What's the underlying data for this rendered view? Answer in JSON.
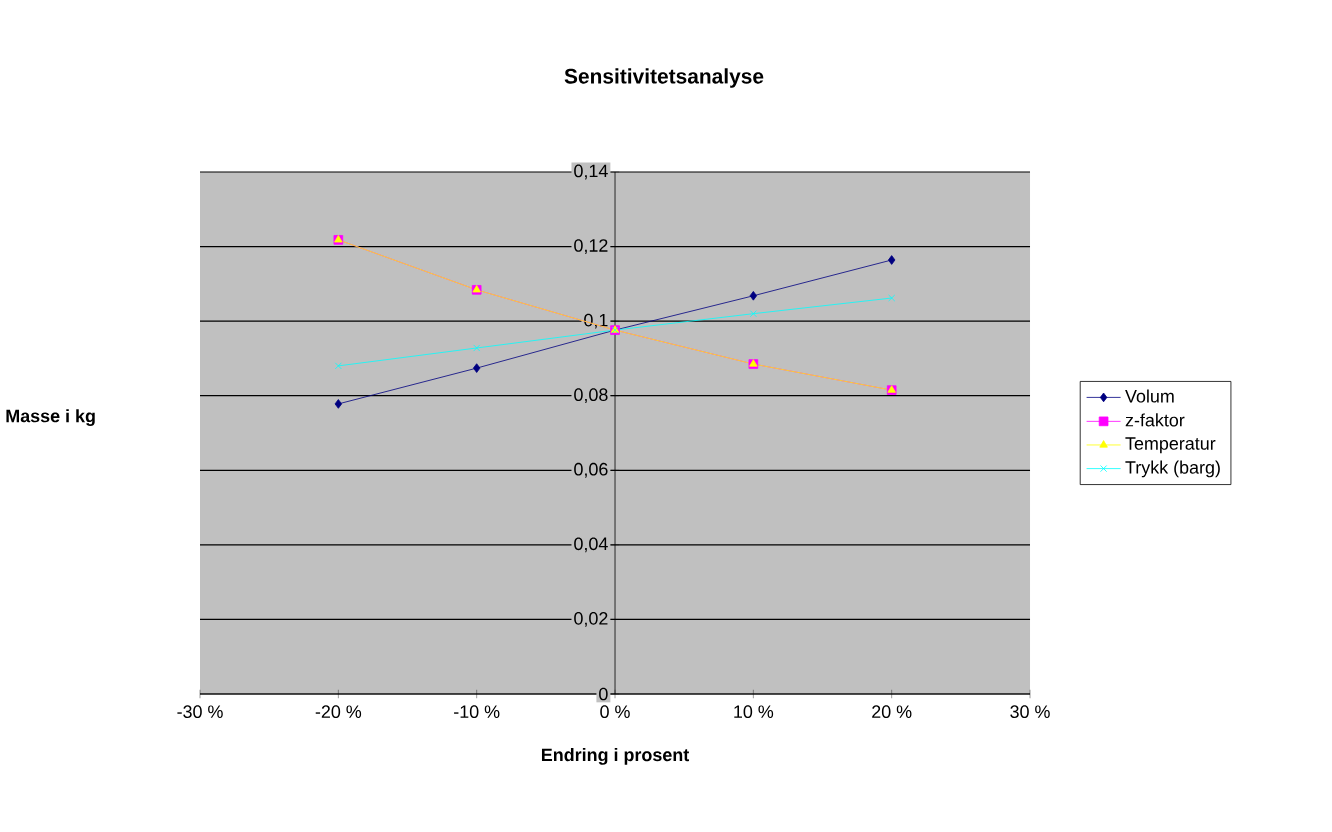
{
  "chart_data": {
    "type": "line",
    "title": "Sensitivitetsanalyse",
    "xlabel": "Endring i prosent",
    "ylabel": "Masse i kg",
    "x": [
      -20,
      -10,
      0,
      10,
      20
    ],
    "series": [
      {
        "name": "Volum",
        "color": "#000080",
        "marker": "diamond",
        "values": [
          0.0778,
          0.0874,
          0.0976,
          0.1068,
          0.1164
        ]
      },
      {
        "name": "z-faktor",
        "color": "#ff00ff",
        "marker": "square",
        "values": [
          0.1218,
          0.1084,
          0.0976,
          0.0885,
          0.0815
        ]
      },
      {
        "name": "Temperatur",
        "color": "#ffff00",
        "marker": "triangle",
        "values": [
          0.1218,
          0.1084,
          0.0976,
          0.0885,
          0.0815
        ]
      },
      {
        "name": "Trykk (barg)",
        "color": "#00ffff",
        "marker": "cross",
        "values": [
          0.088,
          0.0928,
          0.0976,
          0.102,
          0.1062
        ]
      }
    ],
    "xlim": [
      -30,
      30
    ],
    "xticks": [
      {
        "value": -30,
        "label": "-30 %"
      },
      {
        "value": -20,
        "label": "-20 %"
      },
      {
        "value": -10,
        "label": "-10 %"
      },
      {
        "value": 0,
        "label": "0 %"
      },
      {
        "value": 10,
        "label": "10 %"
      },
      {
        "value": 20,
        "label": "20 %"
      },
      {
        "value": 30,
        "label": "30 %"
      }
    ],
    "ylim": [
      0,
      0.14
    ],
    "yticks": [
      0,
      {
        "value": 0.02,
        "label": "0,02"
      },
      {
        "value": 0.04,
        "label": "0,04"
      },
      {
        "value": 0.06,
        "label": "0,06"
      },
      {
        "value": 0.08,
        "label": "0,08"
      },
      {
        "value": 0.1,
        "label": "0,1"
      },
      {
        "value": 0.12,
        "label": "0,12"
      },
      {
        "value": 0.14,
        "label": "0,14"
      }
    ],
    "grid": "y",
    "legend": "right",
    "line_style": "solid"
  }
}
